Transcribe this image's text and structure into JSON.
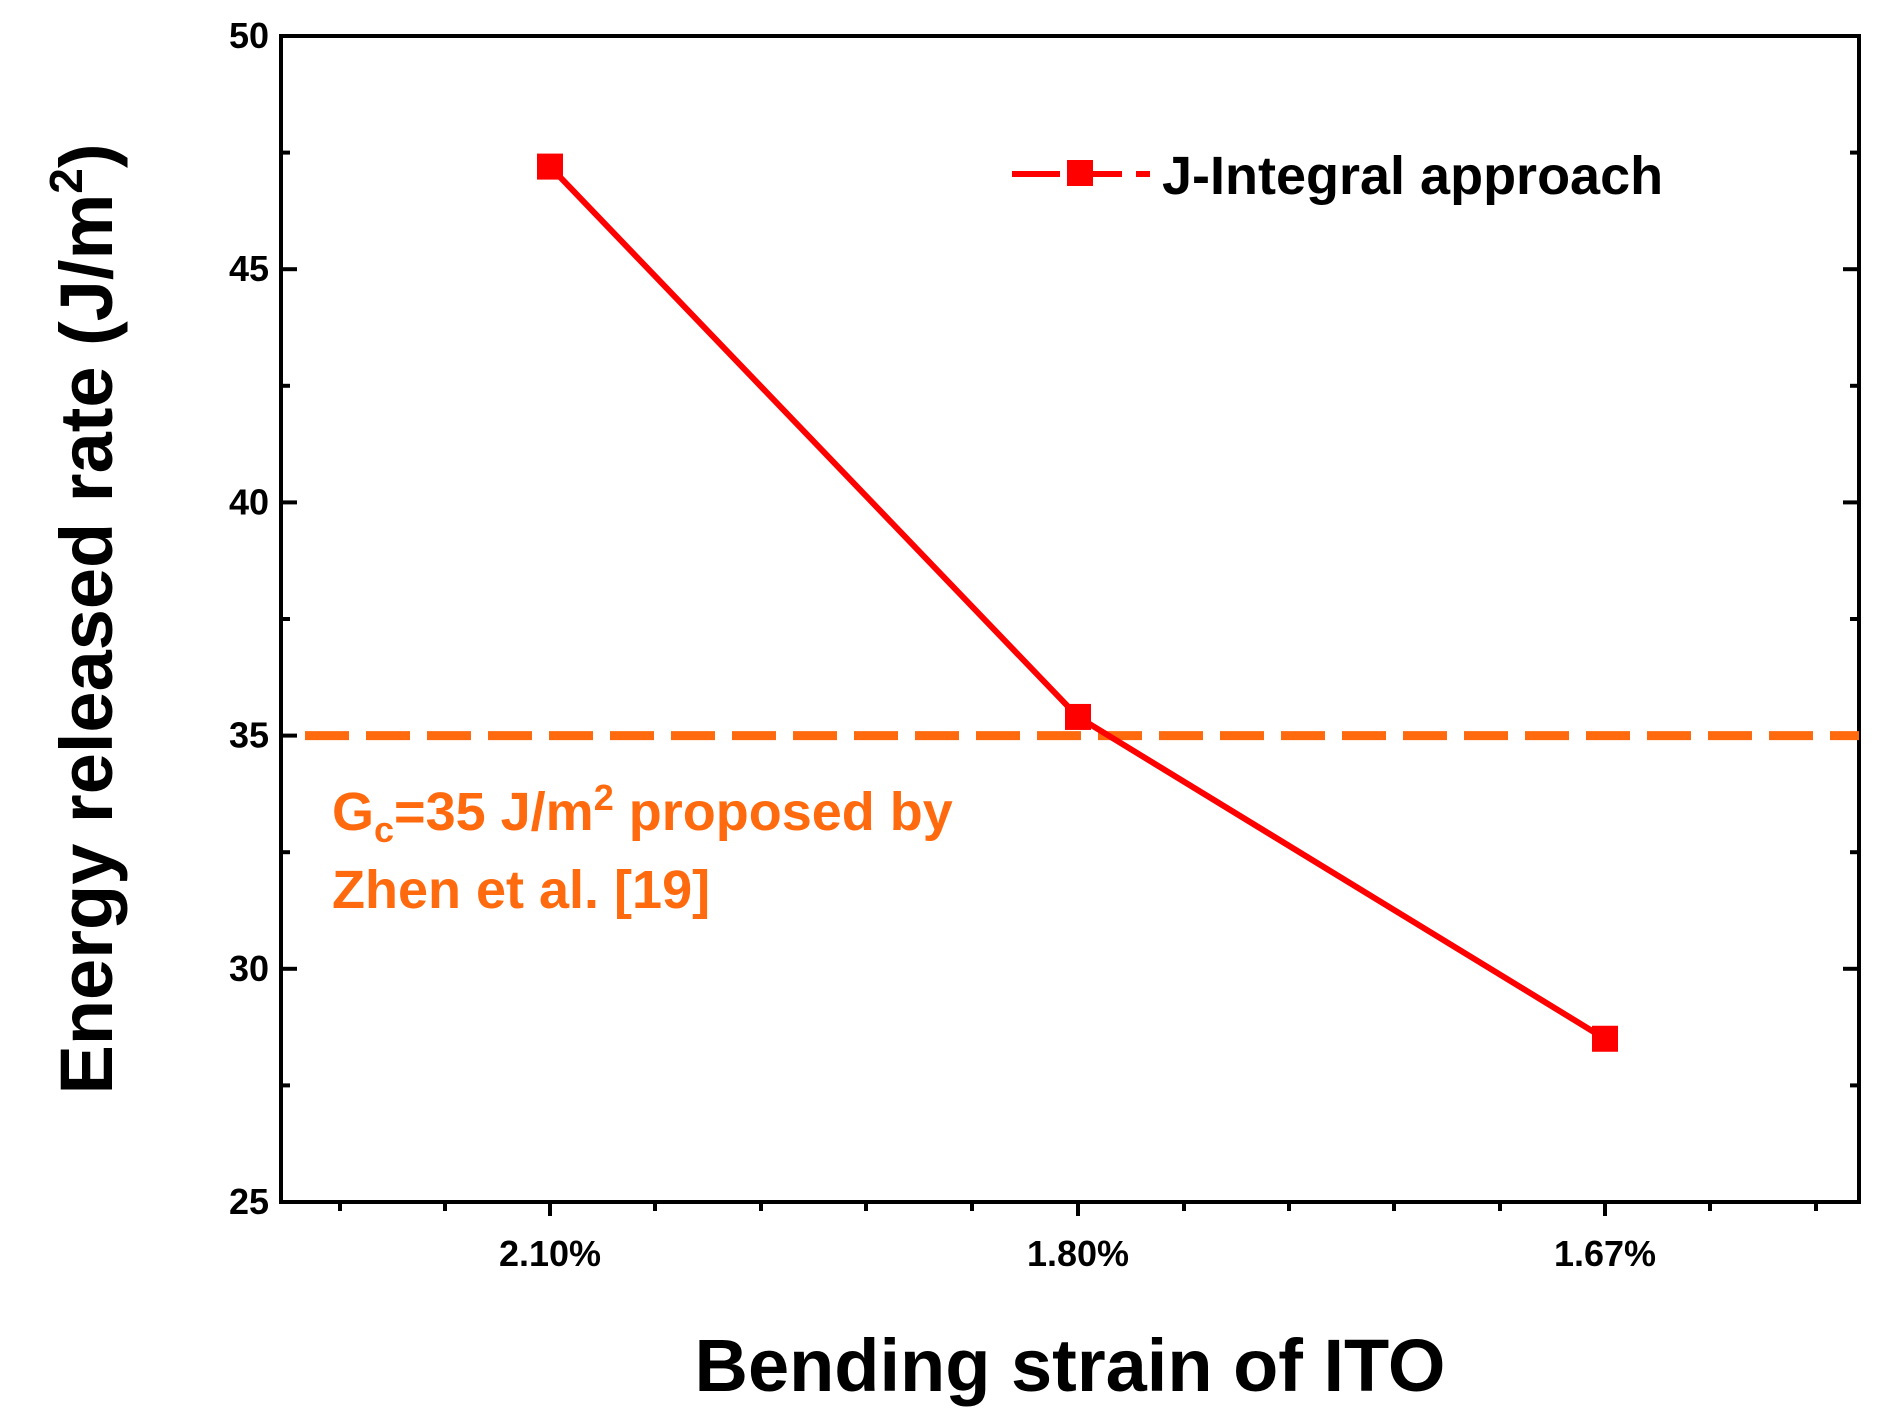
{
  "chart_data": {
    "type": "line",
    "title": "",
    "xlabel": "Bending strain of ITO",
    "ylabel": {
      "main": "Energy released rate (J/m",
      "superscript": "2",
      "close": ")"
    },
    "categories": [
      "2.10%",
      "1.80%",
      "1.67%"
    ],
    "series": [
      {
        "name": "J-Integral approach",
        "values": [
          47.2,
          35.4,
          28.5
        ],
        "color": "#ff0000",
        "marker": "square"
      }
    ],
    "y_ticks": [
      "25",
      "30",
      "35",
      "40",
      "45",
      "50"
    ],
    "ylim": [
      25,
      50
    ],
    "reference_line": {
      "value": 35,
      "color": "#ff6a0e",
      "style": "dashed"
    },
    "annotation": {
      "line1_g": "G",
      "line1_sub": "c",
      "line1_mid": "=35 J/m",
      "line1_sup": "2",
      "line1_end": " proposed by",
      "line2": "Zhen et al. [19]",
      "color": "#ff6a0e"
    },
    "legend_position": "top-right",
    "grid": false
  }
}
